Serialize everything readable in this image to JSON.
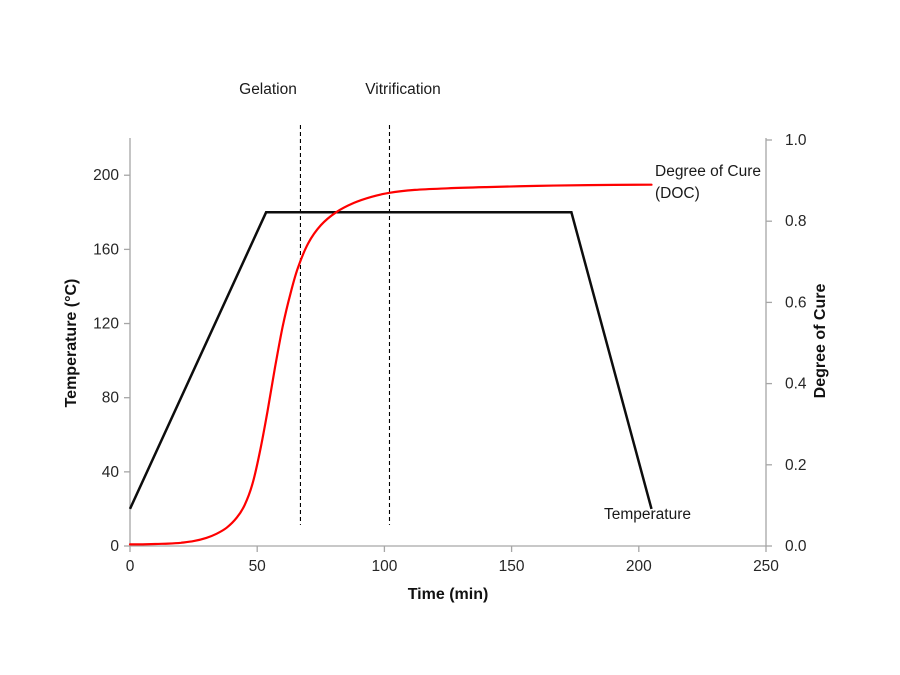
{
  "chart_data": {
    "type": "line",
    "title": "",
    "xlabel": "Time (min)",
    "ylabel_left": "Temperature (°C)",
    "ylabel_right": "Degree of Cure",
    "xlim": [
      0,
      250
    ],
    "ylim_left": [
      0,
      219
    ],
    "ylim_right": [
      0,
      1.0
    ],
    "grid": false,
    "legend_position": "inline-labels",
    "xticks": {
      "values": [
        0,
        50,
        100,
        150,
        200,
        250
      ],
      "labels": [
        "0",
        "50",
        "100",
        "150",
        "200",
        "250"
      ]
    },
    "yticks_left": {
      "values": [
        0,
        40,
        80,
        120,
        160,
        200
      ],
      "labels": [
        "0",
        "40",
        "80",
        "120",
        "160",
        "200"
      ]
    },
    "yticks_right": {
      "values": [
        0.0,
        0.2,
        0.4,
        0.6,
        0.8,
        1.0
      ],
      "labels": [
        "0.0",
        "0.2",
        "0.4",
        "0.6",
        "0.8",
        "1.0"
      ]
    },
    "colors": {
      "axis": "#a6a6a6",
      "tick_text": "#262626",
      "temperature_line": "#0d0d0d",
      "doc_line": "#fe0000",
      "annotation_line": "#000000",
      "background": "#ffffff"
    },
    "series": [
      {
        "name": "Temperature",
        "label_text": "Temperature",
        "axis": "left",
        "color": "#0d0d0d",
        "width": 2.5,
        "smooth": false,
        "points": [
          [
            0,
            20
          ],
          [
            53.5,
            180
          ],
          [
            173.5,
            180
          ],
          [
            205,
            20
          ]
        ]
      },
      {
        "name": "Degree of Cure (DOC)",
        "label_text": "Degree of Cure (DOC)",
        "axis": "right",
        "color": "#fe0000",
        "width": 2.2,
        "smooth": true,
        "points": [
          [
            0,
            0.004
          ],
          [
            5,
            0.004
          ],
          [
            10,
            0.005
          ],
          [
            15,
            0.006
          ],
          [
            20,
            0.008
          ],
          [
            25,
            0.012
          ],
          [
            30,
            0.02
          ],
          [
            34,
            0.03
          ],
          [
            38,
            0.045
          ],
          [
            42,
            0.07
          ],
          [
            45,
            0.1
          ],
          [
            48,
            0.15
          ],
          [
            51,
            0.23
          ],
          [
            54,
            0.33
          ],
          [
            57,
            0.44
          ],
          [
            60,
            0.54
          ],
          [
            63,
            0.62
          ],
          [
            66,
            0.685
          ],
          [
            70,
            0.745
          ],
          [
            75,
            0.79
          ],
          [
            81,
            0.822
          ],
          [
            88,
            0.845
          ],
          [
            95,
            0.86
          ],
          [
            102,
            0.87
          ],
          [
            112,
            0.877
          ],
          [
            125,
            0.881
          ],
          [
            140,
            0.884
          ],
          [
            160,
            0.887
          ],
          [
            180,
            0.889
          ],
          [
            205,
            0.89
          ]
        ]
      }
    ],
    "annotations": [
      {
        "label": "Gelation",
        "x": 67,
        "y0": 0.052,
        "y1": 1.037
      },
      {
        "label": "Vitrification",
        "x": 102,
        "y0": 0.052,
        "y1": 1.037
      }
    ]
  }
}
